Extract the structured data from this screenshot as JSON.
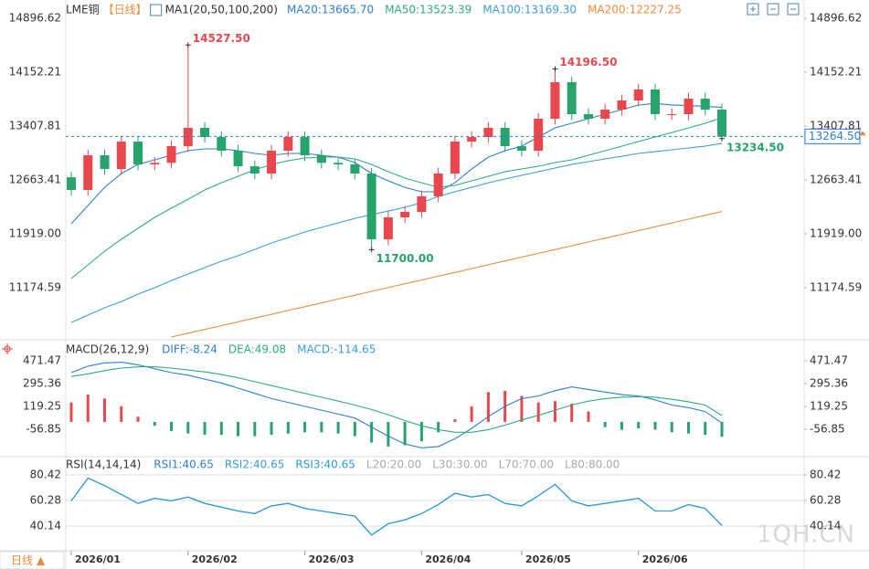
{
  "period_button": "日线 ▲",
  "watermark": "1QH.CN",
  "chart_data": [
    {
      "type": "candlestick",
      "title": "LME铜",
      "subtitle": "【日线】",
      "indicator": "MA1(20,50,100,200)",
      "categories": [
        "2026/01",
        null,
        null,
        null,
        null,
        null,
        null,
        "2026/02",
        null,
        null,
        null,
        null,
        null,
        null,
        "2026/03",
        null,
        null,
        null,
        null,
        null,
        null,
        "2026/04",
        null,
        null,
        null,
        null,
        null,
        "2026/05",
        null,
        null,
        null,
        null,
        null,
        null,
        "2026/06",
        null,
        null,
        null,
        null,
        null
      ],
      "open": [
        12700,
        12525,
        13004,
        12815,
        13193,
        12878,
        12900,
        13130,
        13383,
        13256,
        13067,
        12852,
        12752,
        13067,
        13256,
        13004,
        12900,
        12878,
        12752,
        11843,
        12146,
        12222,
        12437,
        12752,
        13193,
        13256,
        13383,
        13130,
        13067,
        13509,
        14014,
        13572,
        13509,
        13635,
        13761,
        13913,
        13572,
        13572,
        13787,
        13635
      ],
      "high": [
        12780,
        13084,
        13084,
        13273,
        13273,
        12980,
        13210,
        14527.5,
        13463,
        13336,
        13147,
        12932,
        13147,
        13336,
        13336,
        13084,
        12980,
        12958,
        12832,
        12226,
        12302,
        12517,
        12832,
        13273,
        13336,
        13463,
        13463,
        13210,
        13589,
        14196.5,
        14094,
        13652,
        13715,
        13841,
        13993,
        13993,
        13652,
        13867,
        13867,
        13715
      ],
      "low": [
        12445,
        12445,
        12735,
        12735,
        12798,
        12798,
        12820,
        13050,
        13176,
        12987,
        12772,
        12672,
        12672,
        12987,
        12924,
        12820,
        12798,
        12672,
        11700,
        11763,
        12066,
        12142,
        12357,
        12672,
        13113,
        13176,
        13050,
        12987,
        12987,
        13429,
        13492,
        13429,
        13429,
        13555,
        13681,
        13492,
        13492,
        13492,
        13555,
        13234.5
      ],
      "close": [
        12525,
        13004,
        12815,
        13193,
        12878,
        12900,
        13130,
        13383,
        13256,
        13067,
        12852,
        12752,
        13067,
        13256,
        13004,
        12900,
        12878,
        12752,
        11843,
        12146,
        12222,
        12437,
        12752,
        13193,
        13256,
        13383,
        13130,
        13067,
        13509,
        14014,
        13572,
        13509,
        13635,
        13761,
        13913,
        13572,
        13572,
        13787,
        13635,
        13264.5
      ],
      "up_color": "#e8474d",
      "down_color": "#27a36c",
      "series": [
        {
          "name": "MA20:13665.70",
          "color": "#2b7fd4",
          "values": [
            12058,
            12310,
            12562,
            12752,
            12878,
            12941,
            13004,
            13067,
            13092,
            13092,
            13067,
            13029,
            13004,
            13029,
            13029,
            13004,
            12979,
            12903,
            12752,
            12651,
            12562,
            12499,
            12499,
            12625,
            12815,
            12979,
            13067,
            13130,
            13256,
            13383,
            13446,
            13509,
            13572,
            13635,
            13698,
            13720,
            13700,
            13690,
            13680,
            13665.7
          ]
        },
        {
          "name": "MA50:13523.39",
          "color": "#2cae77",
          "values": [
            11301,
            11490,
            11679,
            11843,
            11995,
            12146,
            12272,
            12398,
            12525,
            12625,
            12714,
            12802,
            12878,
            12928,
            12966,
            12979,
            12979,
            12954,
            12878,
            12777,
            12689,
            12625,
            12562,
            12588,
            12651,
            12714,
            12777,
            12815,
            12853,
            12903,
            12941,
            13004,
            13067,
            13130,
            13193,
            13256,
            13319,
            13383,
            13446,
            13523.39
          ]
        },
        {
          "name": "MA100:13169.30",
          "color": "#3b9ddd",
          "values": [
            10695,
            10796,
            10897,
            10985,
            11086,
            11175,
            11275,
            11364,
            11452,
            11541,
            11616,
            11704,
            11793,
            11868,
            11944,
            12007,
            12070,
            12133,
            12184,
            12234,
            12285,
            12348,
            12436,
            12499,
            12562,
            12625,
            12676,
            12727,
            12777,
            12828,
            12878,
            12916,
            12954,
            12991,
            13029,
            13054,
            13080,
            13105,
            13130,
            13169.3
          ]
        },
        {
          "name": "MA200:12227.25",
          "color": "#f08a3c",
          "values": [
            null,
            null,
            null,
            null,
            null,
            null,
            10493,
            10546,
            10598,
            10651,
            10703,
            10756,
            10808,
            10861,
            10913,
            10966,
            11018,
            11071,
            11124,
            11176,
            11229,
            11281,
            11334,
            11386,
            11439,
            11491,
            11544,
            11597,
            11649,
            11702,
            11754,
            11807,
            11859,
            11912,
            11964,
            12017,
            12069,
            12122,
            12174,
            12227.25
          ]
        }
      ],
      "annotations": [
        {
          "x": 7,
          "value": 14527.5,
          "label": "14527.50"
        },
        {
          "x": 29,
          "value": 14196.5,
          "label": "14196.50"
        },
        {
          "x": 18,
          "value": 11700,
          "label": "11700.00"
        },
        {
          "x": 39,
          "value": 13234.5,
          "label": "13234.50"
        }
      ],
      "last_price": {
        "value": 13264.5,
        "label": "13264.50"
      },
      "ylim": [
        10481,
        15086
      ],
      "yticks": [
        {
          "value": 11174.59,
          "label": "11174.59"
        },
        {
          "value": 11919,
          "label": "11919.00"
        },
        12663.41,
        13407.81,
        14152.21,
        14896.62
      ],
      "grid": false
    },
    {
      "type": "macd",
      "title": "MACD(26,12,9)",
      "series": [
        {
          "name": "DIFF:-8.24",
          "color": "#2b7fd4",
          "kind": "line",
          "values": [
            380,
            430,
            455,
            460,
            440,
            410,
            380,
            360,
            330,
            300,
            260,
            220,
            180,
            150,
            120,
            90,
            60,
            30,
            -40,
            -110,
            -170,
            -200,
            -190,
            -130,
            -50,
            40,
            120,
            180,
            200,
            240,
            270,
            250,
            230,
            210,
            200,
            170,
            130,
            110,
            80,
            -8.24
          ]
        },
        {
          "name": "DEA:49.08",
          "color": "#2cae77",
          "kind": "line",
          "values": [
            350,
            370,
            395,
            415,
            425,
            425,
            415,
            400,
            385,
            365,
            340,
            310,
            280,
            250,
            220,
            190,
            160,
            130,
            95,
            55,
            10,
            -30,
            -60,
            -80,
            -80,
            -60,
            -25,
            15,
            50,
            90,
            130,
            160,
            180,
            190,
            195,
            190,
            175,
            155,
            130,
            49.08
          ]
        },
        {
          "name": "MACD:-114.65",
          "color": "#3b9ddd",
          "kind": "bar",
          "values": [
            150,
            210,
            180,
            120,
            40,
            -30,
            -70,
            -90,
            -100,
            -100,
            -110,
            -110,
            -100,
            -90,
            -80,
            -80,
            -90,
            -110,
            -160,
            -190,
            -180,
            -150,
            -80,
            20,
            120,
            230,
            240,
            200,
            150,
            160,
            140,
            80,
            -40,
            -60,
            -50,
            -60,
            -80,
            -90,
            -100,
            -114.65
          ]
        }
      ],
      "up_color": "#e8474d",
      "down_color": "#27a36c",
      "ylim": [
        -247,
        598
      ],
      "yticks": [
        -56.85,
        119.25,
        295.36,
        471.47
      ],
      "grid": false
    },
    {
      "type": "rsi",
      "title": "RSI(14,14,14)",
      "series": [
        {
          "name": "RSI1:40.65",
          "color": "#2b7fd4",
          "values": [
            60,
            78,
            72,
            65,
            58,
            62,
            60,
            63,
            58,
            55,
            52,
            50,
            56,
            58,
            54,
            52,
            50,
            48,
            33,
            42,
            45,
            50,
            57,
            66,
            63,
            65,
            58,
            56,
            64,
            73,
            60,
            56,
            58,
            60,
            62,
            52,
            52,
            57,
            54,
            40.65
          ]
        },
        {
          "name": "RSI2:40.65",
          "color": "#3b9ddd",
          "values": [
            60,
            78,
            72,
            65,
            58,
            62,
            60,
            63,
            58,
            55,
            52,
            50,
            56,
            58,
            54,
            52,
            50,
            48,
            33,
            42,
            45,
            50,
            57,
            66,
            63,
            65,
            58,
            56,
            64,
            73,
            60,
            56,
            58,
            60,
            62,
            52,
            52,
            57,
            54,
            40.65
          ]
        },
        {
          "name": "RSI3:40.65",
          "color": "#2b9bd8",
          "values": [
            60,
            78,
            72,
            65,
            58,
            62,
            60,
            63,
            58,
            55,
            52,
            50,
            56,
            58,
            54,
            52,
            50,
            48,
            33,
            42,
            45,
            50,
            57,
            66,
            63,
            65,
            58,
            56,
            64,
            73,
            60,
            56,
            58,
            60,
            62,
            52,
            52,
            57,
            54,
            40.65
          ]
        }
      ],
      "level_labels": [
        "L20:20.00",
        "L30:30.00",
        "L70:70.00",
        "L80:80.00"
      ],
      "ylim": [
        20.7,
        92.65
      ],
      "yticks": [
        40.14,
        60.28,
        80.42
      ],
      "grid": true
    }
  ]
}
